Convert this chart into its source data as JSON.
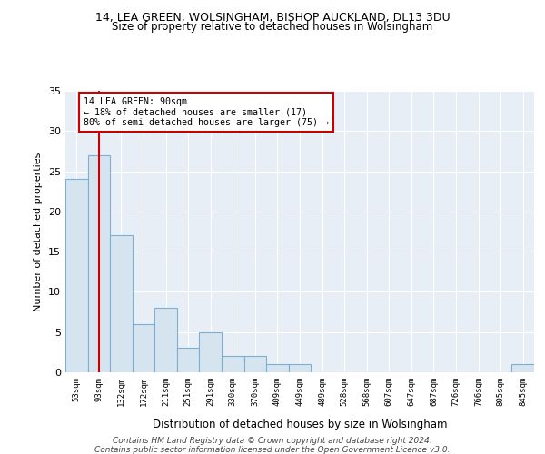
{
  "title1": "14, LEA GREEN, WOLSINGHAM, BISHOP AUCKLAND, DL13 3DU",
  "title2": "Size of property relative to detached houses in Wolsingham",
  "xlabel": "Distribution of detached houses by size in Wolsingham",
  "ylabel": "Number of detached properties",
  "categories": [
    "53sqm",
    "93sqm",
    "132sqm",
    "172sqm",
    "211sqm",
    "251sqm",
    "291sqm",
    "330sqm",
    "370sqm",
    "409sqm",
    "449sqm",
    "489sqm",
    "528sqm",
    "568sqm",
    "607sqm",
    "647sqm",
    "687sqm",
    "726sqm",
    "766sqm",
    "805sqm",
    "845sqm"
  ],
  "values": [
    24,
    27,
    17,
    6,
    8,
    3,
    5,
    2,
    2,
    1,
    1,
    0,
    0,
    0,
    0,
    0,
    0,
    0,
    0,
    0,
    1
  ],
  "bar_color": "#d6e4f0",
  "bar_edge_color": "#7bafd4",
  "vline_color": "#cc0000",
  "vline_x_index": 1,
  "annotation_box_text": "14 LEA GREEN: 90sqm\n← 18% of detached houses are smaller (17)\n80% of semi-detached houses are larger (75) →",
  "ylim": [
    0,
    35
  ],
  "yticks": [
    0,
    5,
    10,
    15,
    20,
    25,
    30,
    35
  ],
  "bg_color": "#e8eef5",
  "grid_color": "#ffffff",
  "footer1": "Contains HM Land Registry data © Crown copyright and database right 2024.",
  "footer2": "Contains public sector information licensed under the Open Government Licence v3.0."
}
